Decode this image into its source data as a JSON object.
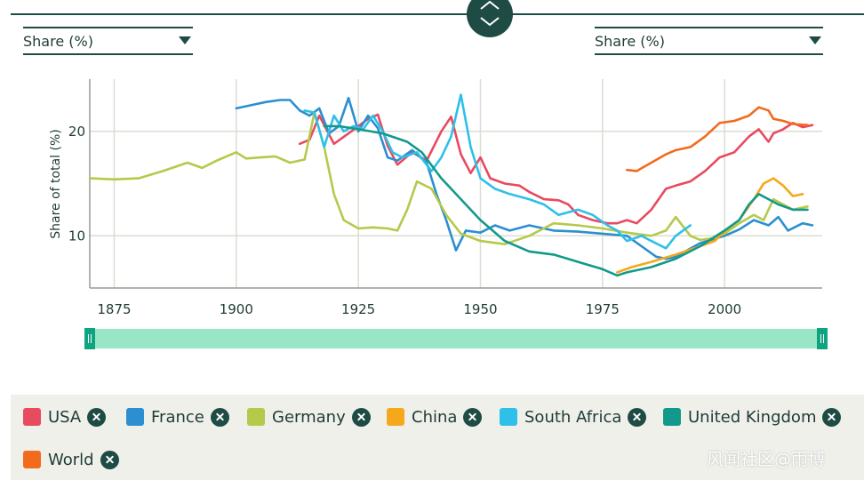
{
  "controls": {
    "left_metric": "Share (%)",
    "right_metric": "Share (%)"
  },
  "legend": [
    {
      "label": "USA",
      "color": "#e84a5f"
    },
    {
      "label": "France",
      "color": "#2b8fd0"
    },
    {
      "label": "Germany",
      "color": "#b5c94a"
    },
    {
      "label": "China",
      "color": "#f5a81c"
    },
    {
      "label": "South Africa",
      "color": "#2ec0e8"
    },
    {
      "label": "United Kingdom",
      "color": "#13998c"
    },
    {
      "label": "World",
      "color": "#f26b1d"
    }
  ],
  "watermark": "风闻社区@雨博",
  "icons": {
    "collapse_toggle": "chevron-up-down-icon",
    "remove": "close-icon",
    "caret": "caret-down-icon"
  },
  "chart_data": {
    "type": "line",
    "ylabel": "Share of total (%)",
    "xlim": [
      1870,
      2020
    ],
    "ylim": [
      5,
      25
    ],
    "x_ticks": [
      1875,
      1900,
      1925,
      1950,
      1975,
      2000
    ],
    "y_ticks": [
      10,
      20
    ],
    "grid": true,
    "legend_placement": "bottom",
    "series": [
      {
        "name": "USA",
        "color": "#e84a5f",
        "points": [
          [
            1913,
            18.8
          ],
          [
            1915,
            19.2
          ],
          [
            1917,
            21.5
          ],
          [
            1920,
            18.8
          ],
          [
            1923,
            19.8
          ],
          [
            1925,
            20.5
          ],
          [
            1927,
            21.2
          ],
          [
            1929,
            21.6
          ],
          [
            1931,
            18.6
          ],
          [
            1933,
            16.8
          ],
          [
            1936,
            18.0
          ],
          [
            1939,
            17.2
          ],
          [
            1942,
            20.0
          ],
          [
            1944,
            21.4
          ],
          [
            1946,
            17.8
          ],
          [
            1948,
            16.0
          ],
          [
            1950,
            17.5
          ],
          [
            1952,
            15.5
          ],
          [
            1955,
            15.0
          ],
          [
            1958,
            14.8
          ],
          [
            1960,
            14.2
          ],
          [
            1963,
            13.5
          ],
          [
            1966,
            13.4
          ],
          [
            1968,
            13.0
          ],
          [
            1970,
            12.0
          ],
          [
            1973,
            11.5
          ],
          [
            1976,
            11.2
          ],
          [
            1978,
            11.2
          ],
          [
            1980,
            11.5
          ],
          [
            1982,
            11.2
          ],
          [
            1985,
            12.5
          ],
          [
            1988,
            14.5
          ],
          [
            1990,
            14.8
          ],
          [
            1993,
            15.2
          ],
          [
            1996,
            16.2
          ],
          [
            1999,
            17.5
          ],
          [
            2002,
            18.0
          ],
          [
            2005,
            19.5
          ],
          [
            2007,
            20.2
          ],
          [
            2009,
            19.0
          ],
          [
            2010,
            19.8
          ],
          [
            2012,
            20.2
          ],
          [
            2014,
            20.8
          ],
          [
            2016,
            20.4
          ],
          [
            2018,
            20.6
          ]
        ]
      },
      {
        "name": "France",
        "color": "#2b8fd0",
        "points": [
          [
            1900,
            22.2
          ],
          [
            1903,
            22.5
          ],
          [
            1906,
            22.8
          ],
          [
            1909,
            23.0
          ],
          [
            1911,
            23.0
          ],
          [
            1913,
            22.0
          ],
          [
            1915,
            21.5
          ],
          [
            1917,
            22.2
          ],
          [
            1919,
            19.8
          ],
          [
            1921,
            20.5
          ],
          [
            1923,
            23.2
          ],
          [
            1925,
            20.0
          ],
          [
            1927,
            21.5
          ],
          [
            1929,
            20.3
          ],
          [
            1931,
            17.5
          ],
          [
            1933,
            17.2
          ],
          [
            1936,
            18.2
          ],
          [
            1939,
            17.0
          ],
          [
            1941,
            14.0
          ],
          [
            1943,
            11.5
          ],
          [
            1945,
            8.6
          ],
          [
            1947,
            10.5
          ],
          [
            1950,
            10.3
          ],
          [
            1953,
            11.0
          ],
          [
            1956,
            10.5
          ],
          [
            1960,
            11.0
          ],
          [
            1965,
            10.5
          ],
          [
            1970,
            10.4
          ],
          [
            1975,
            10.2
          ],
          [
            1980,
            10.0
          ],
          [
            1983,
            9.0
          ],
          [
            1986,
            8.0
          ],
          [
            1988,
            7.8
          ],
          [
            1990,
            8.0
          ],
          [
            1995,
            9.3
          ],
          [
            2000,
            10.0
          ],
          [
            2003,
            10.6
          ],
          [
            2006,
            11.5
          ],
          [
            2009,
            11.0
          ],
          [
            2011,
            11.8
          ],
          [
            2013,
            10.5
          ],
          [
            2016,
            11.2
          ],
          [
            2018,
            11.0
          ]
        ]
      },
      {
        "name": "Germany",
        "color": "#b5c94a",
        "points": [
          [
            1870,
            15.5
          ],
          [
            1875,
            15.4
          ],
          [
            1880,
            15.5
          ],
          [
            1885,
            16.2
          ],
          [
            1890,
            17.0
          ],
          [
            1893,
            16.5
          ],
          [
            1896,
            17.2
          ],
          [
            1900,
            18.0
          ],
          [
            1902,
            17.4
          ],
          [
            1905,
            17.5
          ],
          [
            1908,
            17.6
          ],
          [
            1911,
            17.0
          ],
          [
            1914,
            17.3
          ],
          [
            1916,
            21.8
          ],
          [
            1918,
            18.5
          ],
          [
            1920,
            14.0
          ],
          [
            1922,
            11.5
          ],
          [
            1925,
            10.7
          ],
          [
            1928,
            10.8
          ],
          [
            1931,
            10.7
          ],
          [
            1933,
            10.5
          ],
          [
            1935,
            12.5
          ],
          [
            1937,
            15.2
          ],
          [
            1940,
            14.5
          ],
          [
            1943,
            12.0
          ],
          [
            1946,
            10.2
          ],
          [
            1950,
            9.5
          ],
          [
            1955,
            9.2
          ],
          [
            1960,
            10.0
          ],
          [
            1965,
            11.2
          ],
          [
            1970,
            11.0
          ],
          [
            1975,
            10.7
          ],
          [
            1980,
            10.3
          ],
          [
            1985,
            10.0
          ],
          [
            1988,
            10.5
          ],
          [
            1990,
            11.8
          ],
          [
            1993,
            10.0
          ],
          [
            1995,
            9.6
          ],
          [
            1998,
            9.8
          ],
          [
            2000,
            10.2
          ],
          [
            2003,
            11.2
          ],
          [
            2006,
            12.0
          ],
          [
            2008,
            11.5
          ],
          [
            2010,
            13.5
          ],
          [
            2012,
            13.0
          ],
          [
            2014,
            12.5
          ],
          [
            2017,
            12.8
          ]
        ]
      },
      {
        "name": "China",
        "color": "#f5a81c",
        "points": [
          [
            1978,
            6.5
          ],
          [
            1981,
            7.0
          ],
          [
            1985,
            7.5
          ],
          [
            1990,
            8.2
          ],
          [
            1995,
            9.0
          ],
          [
            1998,
            9.5
          ],
          [
            2001,
            10.8
          ],
          [
            2003,
            11.5
          ],
          [
            2006,
            13.5
          ],
          [
            2008,
            15.0
          ],
          [
            2010,
            15.5
          ],
          [
            2012,
            14.8
          ],
          [
            2014,
            13.8
          ],
          [
            2016,
            14.0
          ]
        ]
      },
      {
        "name": "South Africa",
        "color": "#2ec0e8",
        "points": [
          [
            1914,
            22.0
          ],
          [
            1916,
            21.8
          ],
          [
            1918,
            18.5
          ],
          [
            1920,
            21.5
          ],
          [
            1922,
            20.0
          ],
          [
            1924,
            20.5
          ],
          [
            1926,
            20.2
          ],
          [
            1928,
            21.5
          ],
          [
            1930,
            20.0
          ],
          [
            1932,
            18.0
          ],
          [
            1934,
            17.5
          ],
          [
            1937,
            18.0
          ],
          [
            1940,
            16.2
          ],
          [
            1942,
            17.5
          ],
          [
            1944,
            19.5
          ],
          [
            1946,
            23.5
          ],
          [
            1948,
            18.5
          ],
          [
            1950,
            15.5
          ],
          [
            1953,
            14.5
          ],
          [
            1956,
            14.0
          ],
          [
            1960,
            13.5
          ],
          [
            1963,
            13.0
          ],
          [
            1966,
            12.0
          ],
          [
            1970,
            12.5
          ],
          [
            1973,
            12.0
          ],
          [
            1976,
            11.0
          ],
          [
            1978,
            10.5
          ],
          [
            1980,
            9.5
          ],
          [
            1983,
            10.0
          ],
          [
            1985,
            9.5
          ],
          [
            1988,
            8.8
          ],
          [
            1990,
            10.0
          ],
          [
            1993,
            11.0
          ]
        ]
      },
      {
        "name": "United Kingdom",
        "color": "#13998c",
        "points": [
          [
            1918,
            20.5
          ],
          [
            1921,
            20.5
          ],
          [
            1925,
            20.2
          ],
          [
            1930,
            19.8
          ],
          [
            1935,
            19.0
          ],
          [
            1938,
            18.0
          ],
          [
            1942,
            15.5
          ],
          [
            1946,
            13.5
          ],
          [
            1950,
            11.5
          ],
          [
            1955,
            9.5
          ],
          [
            1960,
            8.5
          ],
          [
            1965,
            8.2
          ],
          [
            1970,
            7.5
          ],
          [
            1975,
            6.8
          ],
          [
            1978,
            6.2
          ],
          [
            1980,
            6.5
          ],
          [
            1985,
            7.0
          ],
          [
            1990,
            7.8
          ],
          [
            1995,
            9.0
          ],
          [
            2000,
            10.5
          ],
          [
            2003,
            11.5
          ],
          [
            2005,
            13.0
          ],
          [
            2007,
            14.0
          ],
          [
            2009,
            13.5
          ],
          [
            2011,
            13.0
          ],
          [
            2014,
            12.5
          ],
          [
            2017,
            12.5
          ]
        ]
      },
      {
        "name": "World",
        "color": "#f26b1d",
        "points": [
          [
            1980,
            16.3
          ],
          [
            1982,
            16.2
          ],
          [
            1985,
            17.0
          ],
          [
            1988,
            17.8
          ],
          [
            1990,
            18.2
          ],
          [
            1993,
            18.5
          ],
          [
            1996,
            19.5
          ],
          [
            1999,
            20.8
          ],
          [
            2002,
            21.0
          ],
          [
            2005,
            21.5
          ],
          [
            2007,
            22.3
          ],
          [
            2009,
            22.0
          ],
          [
            2010,
            21.2
          ],
          [
            2012,
            21.0
          ],
          [
            2014,
            20.7
          ],
          [
            2017,
            20.6
          ]
        ]
      }
    ]
  }
}
